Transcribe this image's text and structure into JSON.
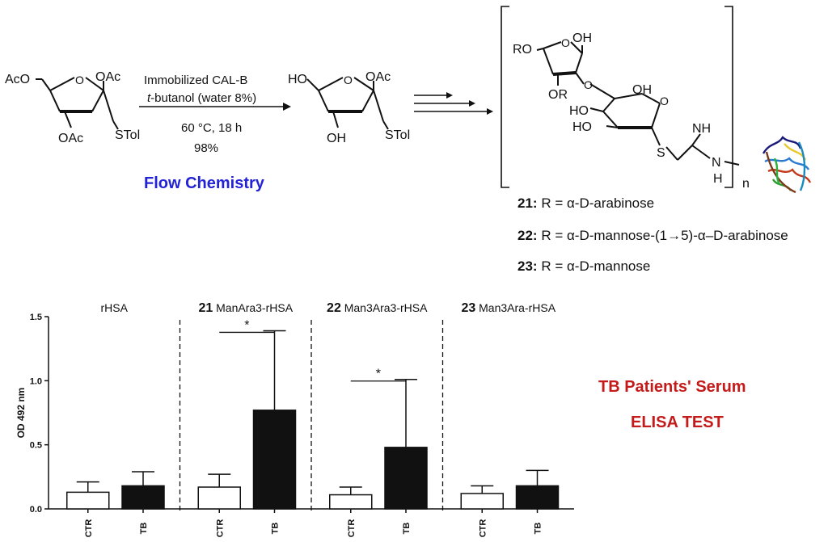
{
  "reaction": {
    "reactant": {
      "acetyl_top_left": "AcO",
      "oac_top": "OAc",
      "oac_bottom": "OAc",
      "stol": "STol"
    },
    "conditions": {
      "line1": "Immobilized CAL-B",
      "line2_italic": "t",
      "line2_rest": "-butanol (water 8%)",
      "line3": "60 °C, 18 h",
      "line4": "98%"
    },
    "product": {
      "ho_top": "HO",
      "oac": "OAc",
      "oh_bottom": "OH",
      "stol": "STol"
    },
    "flow_label": "Flow Chemistry"
  },
  "conjugate": {
    "labels": {
      "ro": "RO",
      "oh_top": "OH",
      "o_ring": "O",
      "or": "OR",
      "o_link": "O",
      "oh_mid": "OH",
      "ho_left": "HO",
      "ho_lower": "HO",
      "o_ring2": "O",
      "s": "S",
      "nh": "NH",
      "n": "N",
      "h": "H",
      "subscript_n": "n"
    },
    "r_definitions": [
      {
        "num": "21:",
        "text": "R = α-D-arabinose"
      },
      {
        "num": "22:",
        "text": "R = α-D-mannose-(1→5)-α–D-arabinose"
      },
      {
        "num": "23:",
        "text": "R = α-D-mannose"
      }
    ]
  },
  "elisa": {
    "title_line1": "TB Patients' Serum",
    "title_line2": "ELISA TEST",
    "colors": {
      "ctr_fill": "#ffffff",
      "tb_fill": "#111111"
    }
  },
  "chart_data": {
    "type": "bar",
    "ylabel": "OD 492 nm",
    "ylim": [
      0,
      1.5
    ],
    "yticks": [
      0.0,
      0.5,
      1.0,
      1.5
    ],
    "ytick_labels": [
      "0.0",
      "0.5",
      "1.0",
      "1.5"
    ],
    "panels": [
      {
        "num": "",
        "title": "rHSA",
        "categories": [
          "CTR",
          "TB"
        ],
        "values": [
          0.13,
          0.18
        ],
        "errors": [
          0.08,
          0.11
        ],
        "significance": ""
      },
      {
        "num": "21",
        "title": "ManAra3-rHSA",
        "categories": [
          "CTR",
          "TB"
        ],
        "values": [
          0.17,
          0.77
        ],
        "errors": [
          0.1,
          0.62
        ],
        "significance": "*"
      },
      {
        "num": "22",
        "title": "Man3Ara3-rHSA",
        "categories": [
          "CTR",
          "TB"
        ],
        "values": [
          0.11,
          0.48
        ],
        "errors": [
          0.06,
          0.53
        ],
        "significance": "*"
      },
      {
        "num": "23",
        "title": "Man3Ara-rHSA",
        "categories": [
          "CTR",
          "TB"
        ],
        "values": [
          0.12,
          0.18
        ],
        "errors": [
          0.06,
          0.12
        ],
        "significance": ""
      }
    ]
  }
}
